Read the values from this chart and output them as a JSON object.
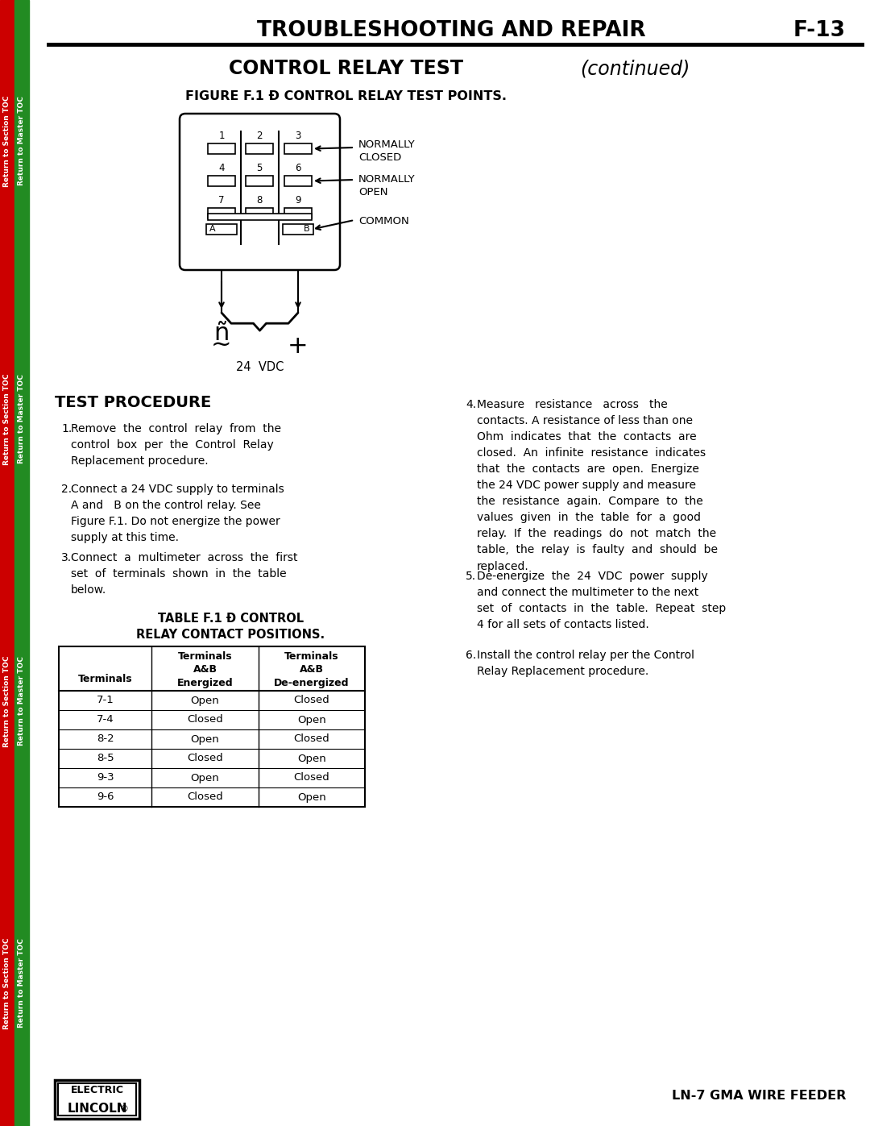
{
  "page_title": "TROUBLESHOOTING AND REPAIR",
  "page_number": "F-13",
  "section_title": "CONTROL RELAY TEST",
  "section_subtitle": "(continued)",
  "figure_title": "FIGURE F.1 Ð CONTROL RELAY TEST POINTS.",
  "relay_labels": {
    "normally_closed": "NORMALLY\nCLOSED",
    "normally_open": "NORMALLY\nOPEN",
    "common": "COMMON"
  },
  "vdc_label": "24  VDC",
  "test_procedure_title": "TEST PROCEDURE",
  "table_title": "TABLE F.1 Ð CONTROL\nRELAY CONTACT POSITIONS.",
  "table_headers": [
    "Terminals",
    "Terminals\nA&B\nEnergized",
    "Terminals\nA&B\nDe-energized"
  ],
  "table_rows": [
    [
      "7-1",
      "Open",
      "Closed"
    ],
    [
      "7-4",
      "Closed",
      "Open"
    ],
    [
      "8-2",
      "Open",
      "Closed"
    ],
    [
      "8-5",
      "Closed",
      "Open"
    ],
    [
      "9-3",
      "Open",
      "Closed"
    ],
    [
      "9-6",
      "Closed",
      "Open"
    ]
  ],
  "footer_right": "LN-7 GMA WIRE FEEDER",
  "bg_color": "#ffffff",
  "sidebar_red": "#cc0000",
  "sidebar_green": "#228B22",
  "sidebar_red2": "#cc0000",
  "sidebar_green2": "#228B22"
}
